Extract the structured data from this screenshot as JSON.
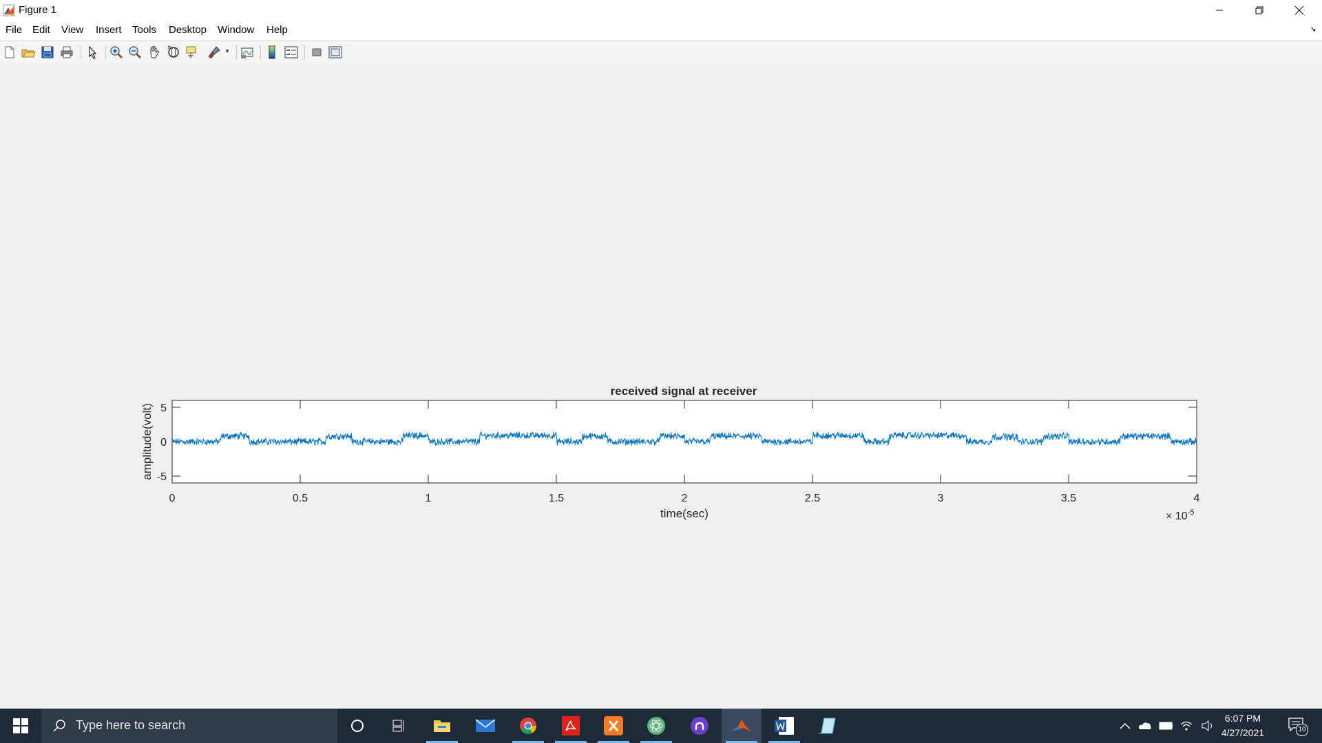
{
  "window": {
    "title": "Figure 1"
  },
  "menu": [
    "File",
    "Edit",
    "View",
    "Insert",
    "Tools",
    "Desktop",
    "Window",
    "Help"
  ],
  "toolbar_icons": [
    "new-figure-icon",
    "open-file-icon",
    "save-icon",
    "print-icon",
    "edit-plot-icon",
    "zoom-in-icon",
    "zoom-out-icon",
    "pan-icon",
    "rotate-3d-icon",
    "data-cursor-icon",
    "brush-icon",
    "link-plot-icon",
    "colorbar-icon",
    "legend-icon",
    "hide-plot-tools-icon",
    "show-plot-tools-icon"
  ],
  "chart_data": {
    "type": "line",
    "title": "received signal at receiver",
    "xlabel": "time(sec)",
    "ylabel": "amplitude(volt)",
    "xlim": [
      0,
      4e-05
    ],
    "ylim": [
      -6,
      6
    ],
    "x_tick_labels": [
      "0",
      "0.5",
      "1",
      "1.5",
      "2",
      "2.5",
      "3",
      "3.5",
      "4"
    ],
    "y_tick_labels": [
      "5",
      "0",
      "-5"
    ],
    "x_exponent_label": "× 10",
    "x_exponent_power": "-5",
    "series_color": "#0072bd",
    "baseline_levels": [
      {
        "x0": 0,
        "x1": 0.19,
        "y": 0
      },
      {
        "x0": 0.19,
        "x1": 0.3,
        "y": 0.8
      },
      {
        "x0": 0.3,
        "x1": 0.6,
        "y": 0
      },
      {
        "x0": 0.6,
        "x1": 0.7,
        "y": 0.8
      },
      {
        "x0": 0.7,
        "x1": 0.9,
        "y": 0
      },
      {
        "x0": 0.9,
        "x1": 1.0,
        "y": 0.9
      },
      {
        "x0": 1.0,
        "x1": 1.2,
        "y": 0
      },
      {
        "x0": 1.2,
        "x1": 1.5,
        "y": 0.9
      },
      {
        "x0": 1.5,
        "x1": 1.6,
        "y": 0
      },
      {
        "x0": 1.6,
        "x1": 1.7,
        "y": 0.8
      },
      {
        "x0": 1.7,
        "x1": 1.9,
        "y": 0
      },
      {
        "x0": 1.9,
        "x1": 2.0,
        "y": 0.8
      },
      {
        "x0": 2.0,
        "x1": 2.1,
        "y": 0
      },
      {
        "x0": 2.1,
        "x1": 2.3,
        "y": 0.8
      },
      {
        "x0": 2.3,
        "x1": 2.5,
        "y": 0
      },
      {
        "x0": 2.5,
        "x1": 2.7,
        "y": 0.9
      },
      {
        "x0": 2.7,
        "x1": 2.8,
        "y": 0
      },
      {
        "x0": 2.8,
        "x1": 3.1,
        "y": 0.9
      },
      {
        "x0": 3.1,
        "x1": 3.2,
        "y": 0
      },
      {
        "x0": 3.2,
        "x1": 3.3,
        "y": 0.7
      },
      {
        "x0": 3.3,
        "x1": 3.4,
        "y": 0
      },
      {
        "x0": 3.4,
        "x1": 3.5,
        "y": 0.8
      },
      {
        "x0": 3.5,
        "x1": 3.7,
        "y": 0
      },
      {
        "x0": 3.7,
        "x1": 3.9,
        "y": 0.8
      },
      {
        "x0": 3.9,
        "x1": 4.0,
        "y": 0
      }
    ],
    "noise_amplitude": 0.4,
    "grid": false
  },
  "taskbar": {
    "search_placeholder": "Type here to search",
    "apps": [
      "cortana-icon",
      "task-view-icon",
      "file-explorer-icon",
      "mail-icon",
      "chrome-icon",
      "acrobat-icon",
      "xampp-icon",
      "atom-icon",
      "github-desktop-icon",
      "matlab-icon",
      "word-icon",
      "notepad-icon"
    ],
    "time": "6:07 PM",
    "date": "4/27/2021",
    "notification_count": "10"
  }
}
